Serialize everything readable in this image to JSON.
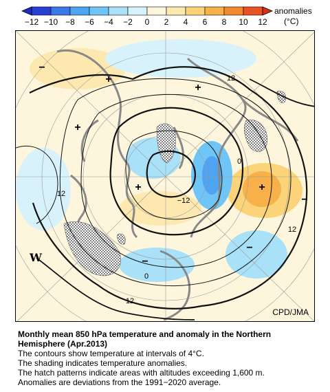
{
  "colorbar": {
    "ticks": [
      "−12",
      "−10",
      "−8",
      "−6",
      "−4",
      "−2",
      "0",
      "2",
      "4",
      "6",
      "8",
      "10",
      "12"
    ],
    "label_line1": "anomalies",
    "label_line2": "(°C)",
    "colors": [
      "#2a3fd6",
      "#3a78e8",
      "#4fa4f2",
      "#6fc6f6",
      "#a9e1f8",
      "#d8f2fb",
      "#fdf6dc",
      "#fde9b0",
      "#fbd47a",
      "#f7b04a",
      "#f08a2e",
      "#e85424"
    ]
  },
  "map": {
    "contour_labels": [
      "12",
      "0",
      "−12",
      "12",
      "0",
      "12",
      "12",
      "0"
    ],
    "high_markers": [
      "+",
      "+",
      "+",
      "+",
      "+"
    ],
    "low_markers": [
      "−",
      "−",
      "−",
      "−"
    ],
    "credit": "CPD/JMA",
    "north_arrow_glyph": "W"
  },
  "caption": {
    "title": "Monthly mean 850 hPa temperature and anomaly in the Northern Hemisphere (Apr.2013)",
    "lines": [
      "The contours show temperature at intervals of 4°C.",
      "The shading indicates temperature anomalies.",
      "The hatch patterns indicate areas with altitudes exceeding 1,600 m.",
      "Anomalies are deviations from the 1991−2020 average."
    ]
  }
}
